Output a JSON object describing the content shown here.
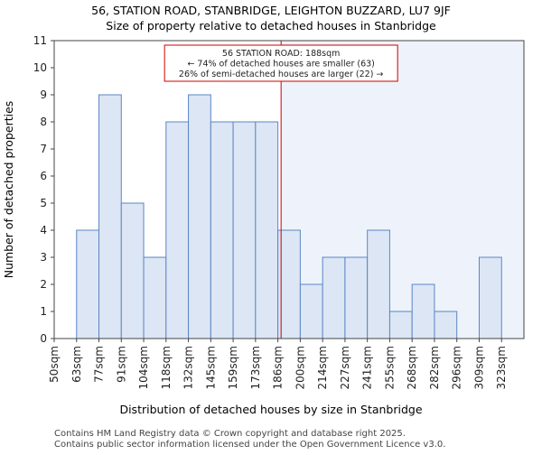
{
  "chart_data": {
    "type": "bar",
    "title": "56, STATION ROAD, STANBRIDGE, LEIGHTON BUZZARD, LU7 9JF",
    "subtitle": "Size of property relative to detached houses in Stanbridge",
    "xlabel": "Distribution of detached houses by size in Stanbridge",
    "ylabel": "Number of detached properties",
    "categories": [
      "50sqm",
      "63sqm",
      "77sqm",
      "91sqm",
      "104sqm",
      "118sqm",
      "132sqm",
      "145sqm",
      "159sqm",
      "173sqm",
      "186sqm",
      "200sqm",
      "214sqm",
      "227sqm",
      "241sqm",
      "255sqm",
      "268sqm",
      "282sqm",
      "296sqm",
      "309sqm",
      "323sqm"
    ],
    "values": [
      0,
      4,
      9,
      5,
      3,
      8,
      9,
      8,
      8,
      8,
      4,
      2,
      3,
      3,
      4,
      1,
      2,
      1,
      0,
      3,
      0
    ],
    "yticks": [
      0,
      1,
      2,
      3,
      4,
      5,
      6,
      7,
      8,
      9,
      10,
      11
    ],
    "ylim": [
      0,
      11
    ],
    "grid": false,
    "marker": {
      "value_sqm": 188,
      "color": "#cc0000"
    },
    "annotation": {
      "lines": [
        "56 STATION ROAD: 188sqm",
        "← 74% of detached houses are smaller (63)",
        "26% of semi-detached houses are larger (22) →"
      ]
    },
    "colors": {
      "bar_fill": "#dce6f5",
      "bar_stroke": "#5b86c4",
      "highlight_region": "#eef3fb",
      "annotation_border": "#cc0000"
    }
  },
  "footer": {
    "line1": "Contains HM Land Registry data © Crown copyright and database right 2025.",
    "line2": "Contains public sector information licensed under the Open Government Licence v3.0."
  }
}
